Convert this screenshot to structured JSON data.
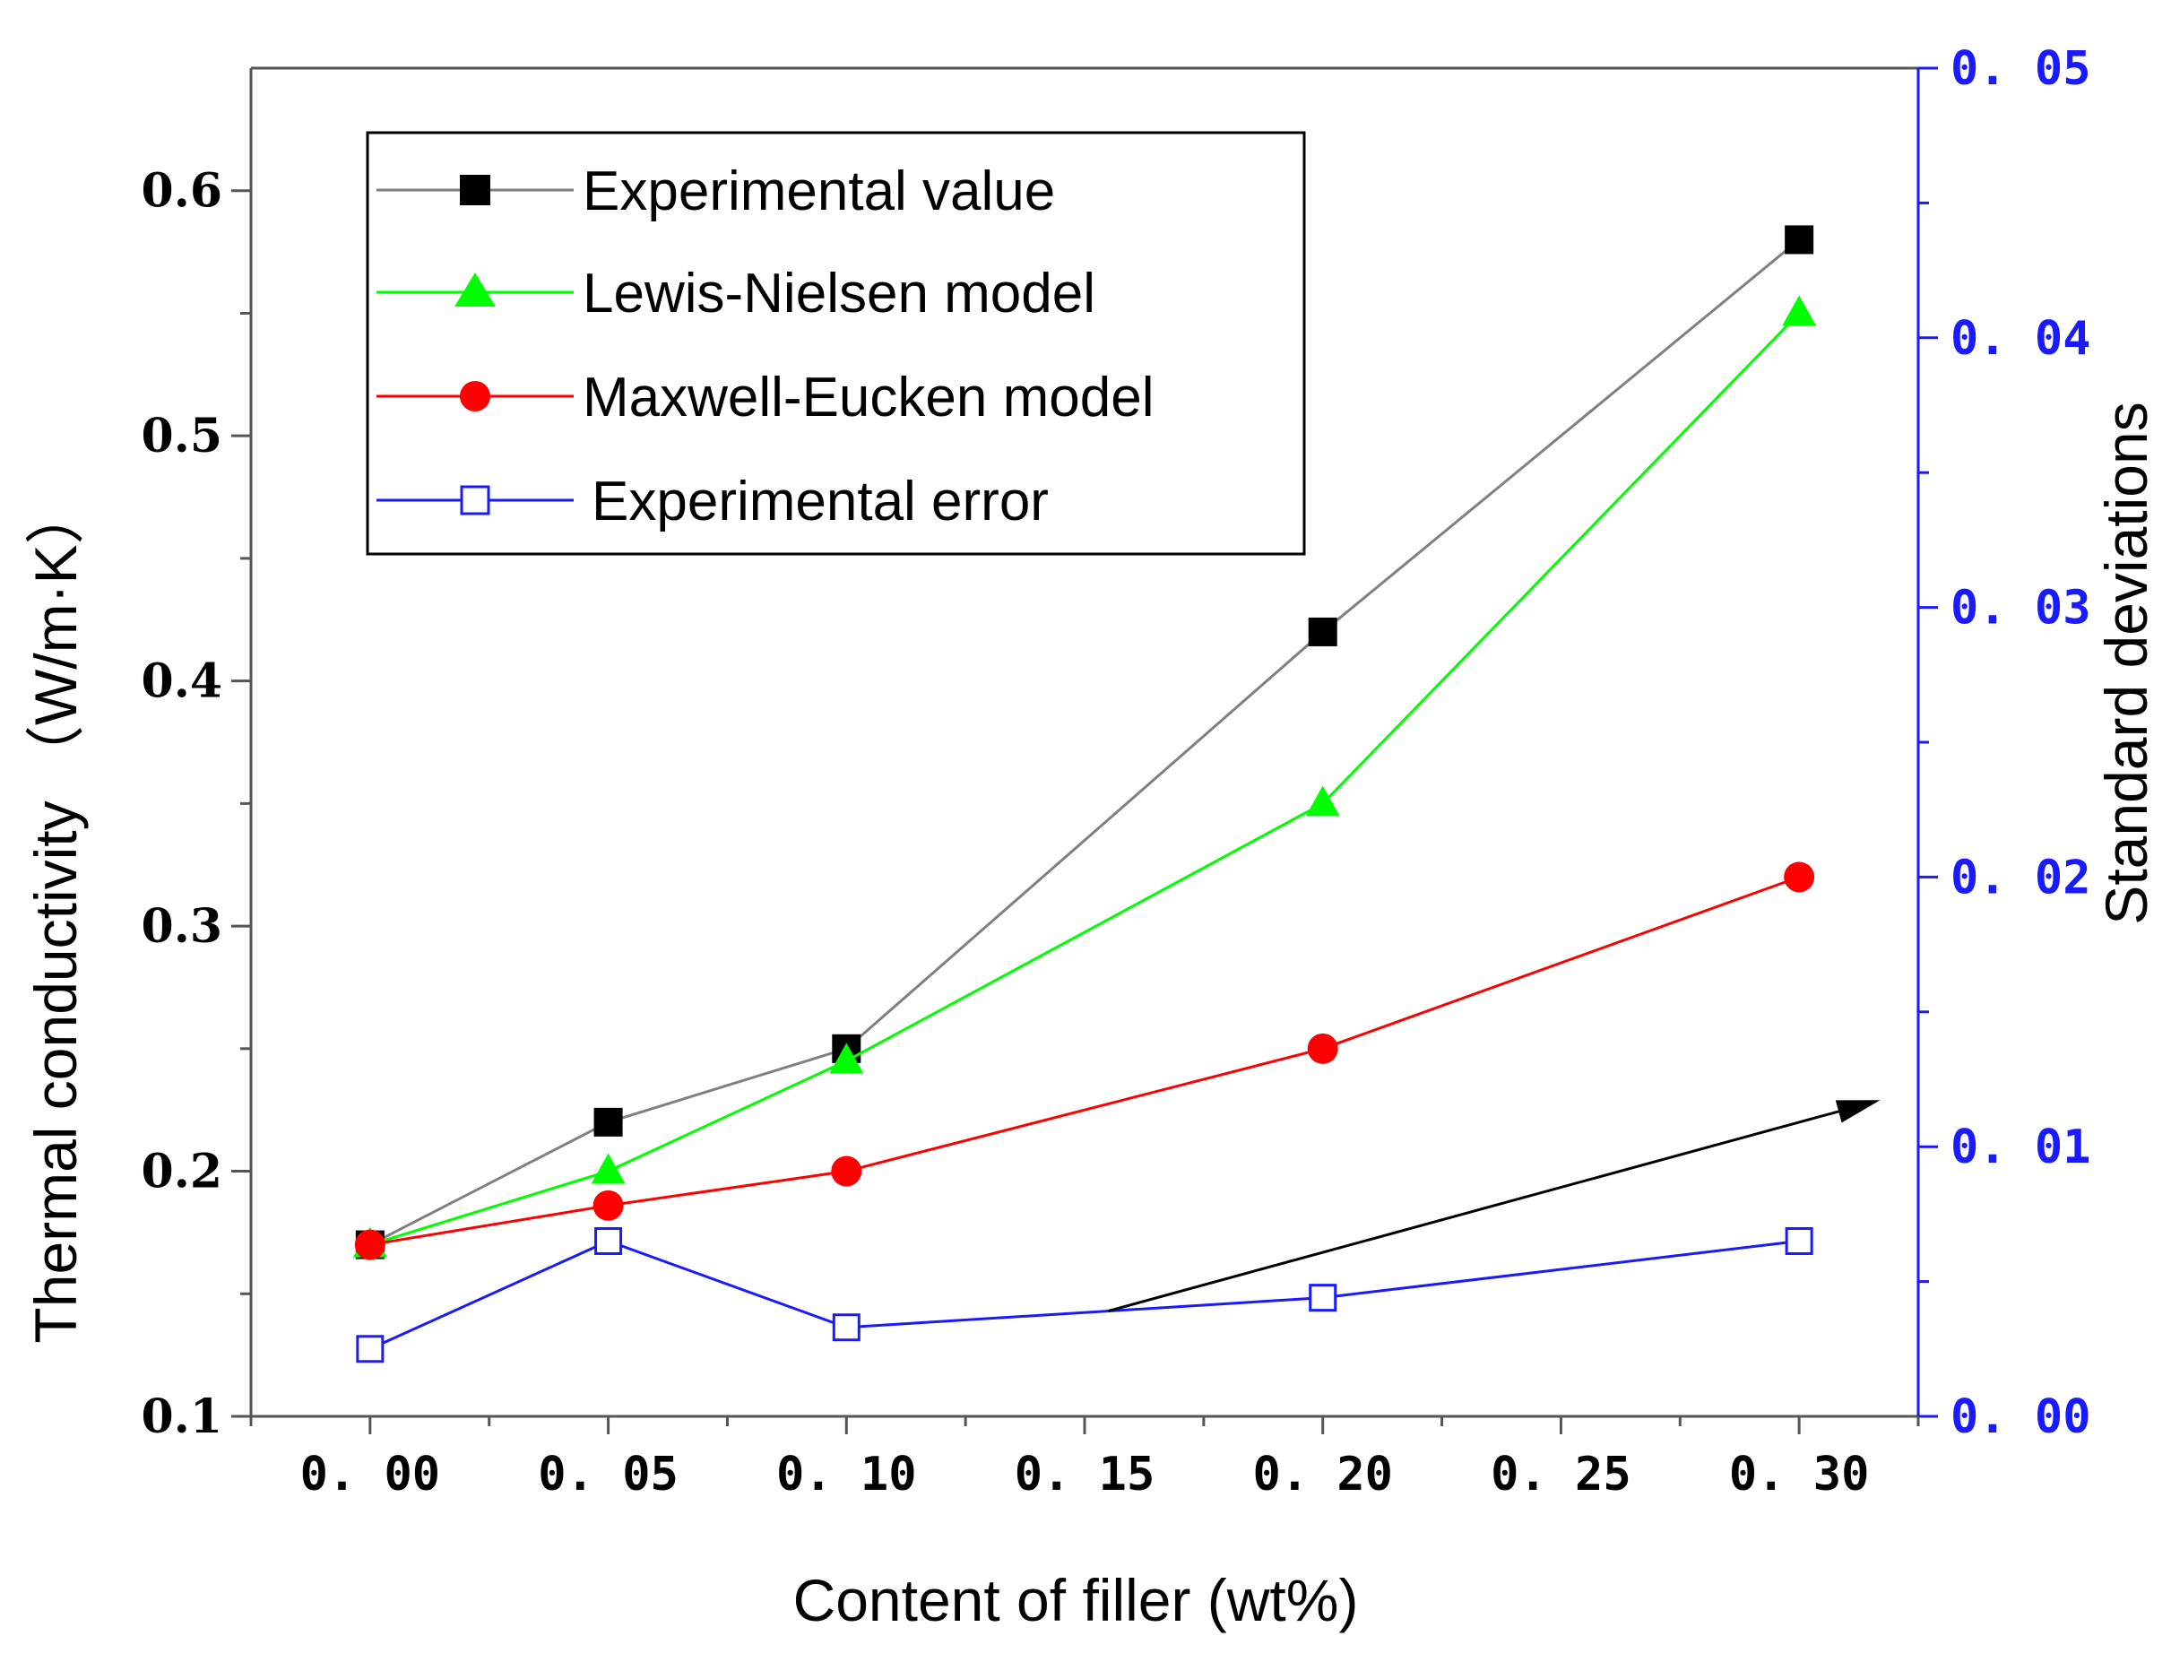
{
  "chart_data": {
    "type": "line",
    "x": [
      0.0,
      0.05,
      0.1,
      0.2,
      0.3
    ],
    "x_tick_values": [
      0.0,
      0.05,
      0.1,
      0.15,
      0.2,
      0.25,
      0.3
    ],
    "x_tick_labels": [
      "0. 00",
      "0. 05",
      "0. 10",
      "0. 15",
      "0. 20",
      "0. 25",
      "0. 30"
    ],
    "xlim": [
      -0.025,
      0.325
    ],
    "xlabel": "Content of filler (wt%)",
    "y_left": {
      "label": "Thermal conductivity （W/m·K）",
      "lim": [
        0.1,
        0.65
      ],
      "tick_values": [
        0.1,
        0.2,
        0.3,
        0.4,
        0.5,
        0.6
      ],
      "tick_labels": [
        "0.1",
        "0.2",
        "0.3",
        "0.4",
        "0.5",
        "0.6"
      ],
      "minor_tick_values": [
        0.15,
        0.25,
        0.35,
        0.45,
        0.55
      ]
    },
    "y_right": {
      "label": "Standard deviations",
      "lim": [
        0.0,
        0.05
      ],
      "tick_values": [
        0.0,
        0.01,
        0.02,
        0.03,
        0.04,
        0.05
      ],
      "tick_labels": [
        "0. 00",
        "0. 01",
        "0. 02",
        "0. 03",
        "0. 04",
        "0. 05"
      ],
      "minor_tick_values": [
        0.005,
        0.015,
        0.025,
        0.035,
        0.045
      ],
      "color": "#1a1aff"
    },
    "series": [
      {
        "name": "Experimental value",
        "axis": "left",
        "values": [
          0.17,
          0.22,
          0.25,
          0.42,
          0.58
        ],
        "color": "#808080",
        "marker_color": "#000000",
        "marker": "square-filled"
      },
      {
        "name": "Lewis-Nielsen model",
        "axis": "left",
        "values": [
          0.17,
          0.2,
          0.245,
          0.35,
          0.55
        ],
        "color": "#00ff00",
        "marker_color": "#00ff00",
        "marker": "triangle-filled"
      },
      {
        "name": "Maxwell-Eucken model",
        "axis": "left",
        "values": [
          0.17,
          0.186,
          0.2,
          0.25,
          0.32
        ],
        "color": "#ff0000",
        "marker_color": "#ff0000",
        "marker": "circle-filled"
      },
      {
        "name": "Experimental  error",
        "axis": "right",
        "values": [
          0.0025,
          0.0065,
          0.0033,
          0.0044,
          0.0065
        ],
        "color": "#1a1aff",
        "marker_color": "#1a1aff",
        "marker": "square-open"
      }
    ],
    "annotations": [
      {
        "type": "arrow",
        "from": {
          "x": 0.155,
          "y_left": 0.143
        },
        "to": {
          "x": 0.317,
          "y_left": 0.229
        },
        "color": "#000000"
      }
    ],
    "legend_position": "top-left"
  }
}
